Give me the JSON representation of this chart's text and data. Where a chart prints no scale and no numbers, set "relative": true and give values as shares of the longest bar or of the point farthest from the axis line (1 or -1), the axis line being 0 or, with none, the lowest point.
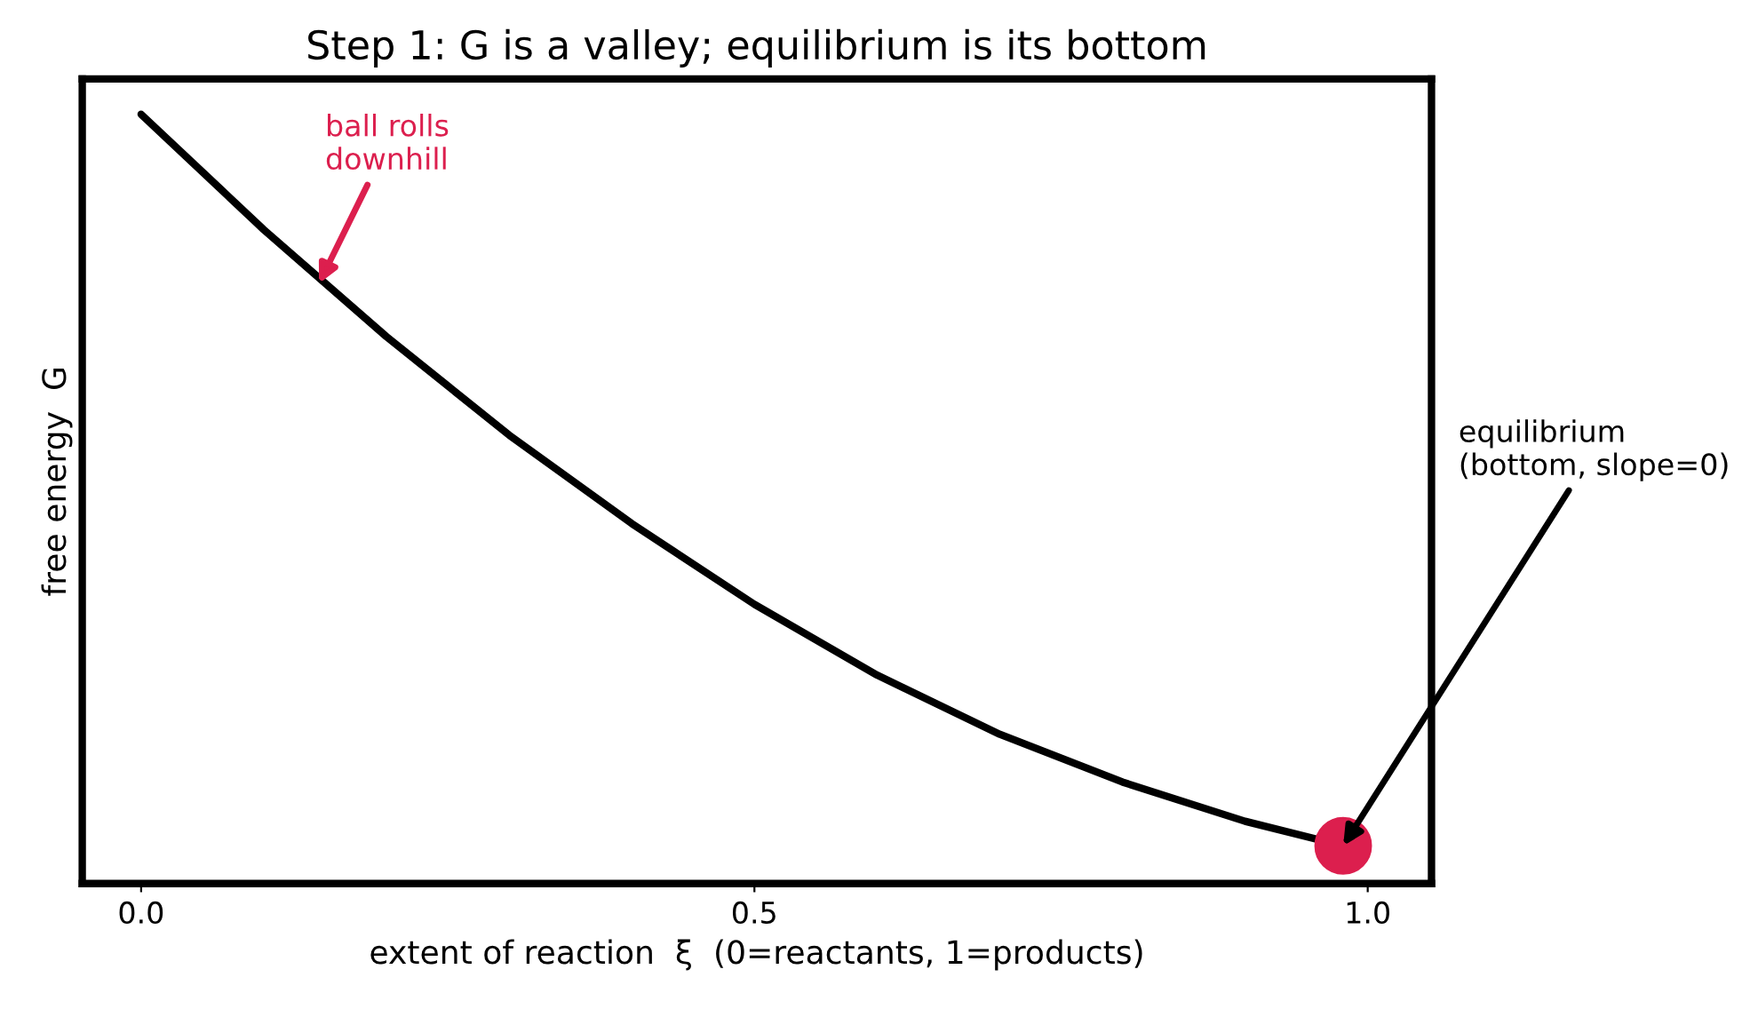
{
  "chart_data": {
    "type": "line",
    "title": "Step 1: G is a valley; equilibrium is its bottom",
    "xlabel": "extent of reaction  ξ  (0=reactants, 1=products)",
    "ylabel": "free energy  G",
    "relative": true,
    "xlim": [
      -0.048,
      1.052
    ],
    "xticks": [
      {
        "value": 0,
        "label": "0.0"
      },
      0.5,
      {
        "value": 1,
        "label": "1.0"
      }
    ],
    "grid": false,
    "legend": false,
    "tick_labels": "x",
    "series": [
      {
        "color": "#000000",
        "x": [
          0,
          0.1,
          0.2,
          0.3,
          0.4,
          0.5,
          0.6,
          0.7,
          0.8,
          0.9,
          0.98
        ],
        "values": [
          1,
          0.85,
          0.711,
          0.583,
          0.468,
          0.363,
          0.271,
          0.194,
          0.132,
          0.081,
          0.049
        ]
      },
      {
        "type": "scatter",
        "color": "#dc1f4e",
        "x": [
          0.98
        ],
        "values": [
          0.049
        ]
      }
    ],
    "annotations": [
      {
        "text": "ball rolls\ndownhill",
        "x": 0.145,
        "y": 0.78
      },
      {
        "text": "equilibrium\n(bottom, slope=0)",
        "x": 0.98,
        "y": 0.049
      }
    ]
  }
}
